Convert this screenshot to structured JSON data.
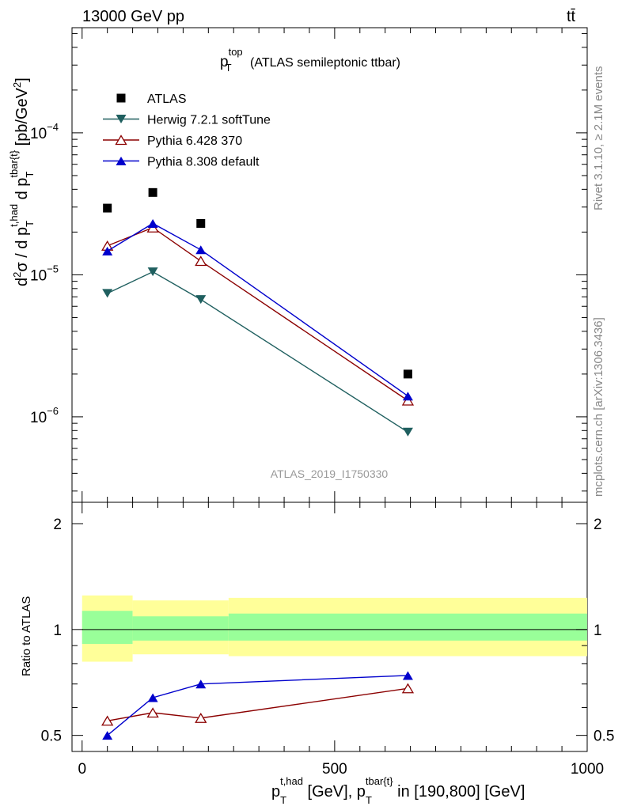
{
  "header": {
    "left": "13000 GeV pp",
    "right": "tt̄"
  },
  "side_labels": {
    "rivet": "Rivet 3.1.10, ≥ 2.1M events",
    "mcplots": "mcplots.cern.ch [arXiv:1306.3436]"
  },
  "main_plot": {
    "title_main": "p",
    "title_sub": "T",
    "title_sup": "top",
    "title_rest": " (ATLAS semileptonic ttbar)",
    "watermark": "ATLAS_2019_I1750330",
    "ylabel_text": "d²σ / d p_T^{t,had} d p_T^{tbar{t}} [pb/GeV²]",
    "yticks": [
      {
        "mant": "10",
        "exp": "−4",
        "value": 0.0001
      },
      {
        "mant": "10",
        "exp": "−5",
        "value": 1e-05
      },
      {
        "mant": "10",
        "exp": "−6",
        "value": 1e-06
      }
    ]
  },
  "ratio_plot": {
    "ylabel": "Ratio to ATLAS",
    "yticks": [
      "0.5",
      "1",
      "2"
    ],
    "xticks": [
      "0",
      "500",
      "1000"
    ]
  },
  "xlabel_text": "p_T^{t,had} [GeV], p_T^{tbar{t}} in [190,800] [GeV]",
  "legend": [
    {
      "label": "ATLAS",
      "marker": "square",
      "color": "#000000"
    },
    {
      "label": "Herwig 7.2.1 softTune",
      "marker": "triangle-down",
      "color": "#1f5f5f"
    },
    {
      "label": "Pythia 6.428 370",
      "marker": "triangle-up-open",
      "color": "#8b0000"
    },
    {
      "label": "Pythia 8.308 default",
      "marker": "triangle-up",
      "color": "#0000cc"
    }
  ],
  "chart_data": {
    "type": "scatter",
    "x_scale": "linear",
    "y_scale": "log",
    "xlim": [
      -20,
      1000
    ],
    "ylim": [
      2.5e-07,
      0.00055
    ],
    "ratio_ylim": [
      0.45,
      2.3
    ],
    "x": [
      50,
      140,
      235,
      645
    ],
    "series": [
      {
        "name": "ATLAS",
        "values": [
          2.95e-05,
          3.8e-05,
          2.3e-05,
          2e-06
        ],
        "ratio": [
          1,
          1,
          1,
          1
        ],
        "color": "#000000",
        "marker": "square"
      },
      {
        "name": "Herwig 7.2.1 softTune",
        "values": [
          7.4e-06,
          1.05e-05,
          6.7e-06,
          7.8e-07
        ],
        "color": "#1f5f5f",
        "marker": "triangle-down"
      },
      {
        "name": "Pythia 6.428 370",
        "values": [
          1.6e-05,
          2.15e-05,
          1.25e-05,
          1.3e-06
        ],
        "ratio": [
          0.55,
          0.58,
          0.56,
          0.68
        ],
        "color": "#8b0000",
        "marker": "triangle-up-open"
      },
      {
        "name": "Pythia 8.308 default",
        "values": [
          1.47e-05,
          2.3e-05,
          1.5e-05,
          1.4e-06
        ],
        "ratio": [
          0.5,
          0.64,
          0.7,
          0.74
        ],
        "color": "#0000cc",
        "marker": "triangle-up"
      }
    ],
    "ratio_bands": [
      {
        "x": [
          0,
          100
        ],
        "outer": [
          0.81,
          1.25
        ],
        "inner": [
          0.91,
          1.13
        ]
      },
      {
        "x": [
          100,
          290
        ],
        "outer": [
          0.85,
          1.21
        ],
        "inner": [
          0.93,
          1.09
        ]
      },
      {
        "x": [
          290,
          1000
        ],
        "outer": [
          0.84,
          1.23
        ],
        "inner": [
          0.93,
          1.11
        ]
      }
    ],
    "band_colors": {
      "outer": "#ffff99",
      "inner": "#99ff99"
    }
  }
}
